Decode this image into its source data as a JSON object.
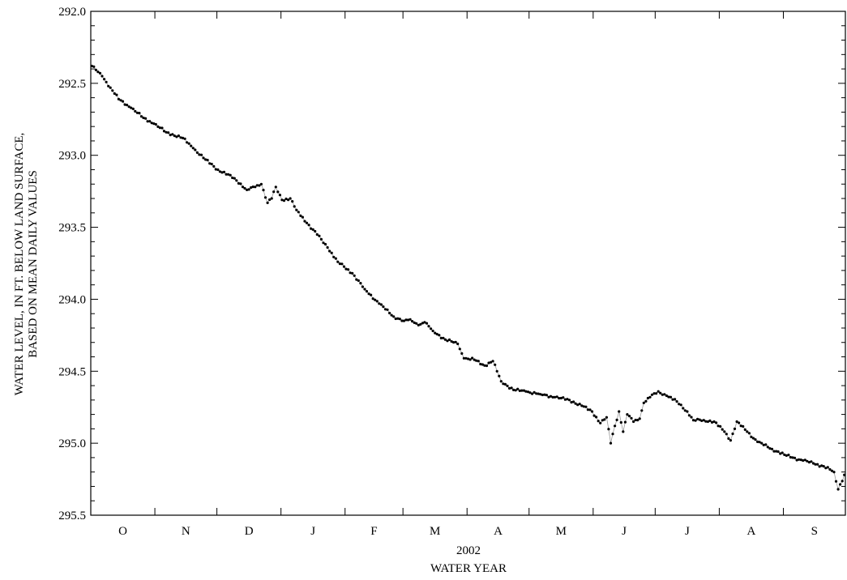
{
  "chart_data": {
    "type": "line",
    "title": "",
    "ylabel_lines": [
      "WATER LEVEL, IN FT. BELOW LAND SURFACE,",
      "BASED ON MEAN DAILY VALUES"
    ],
    "xlabel_year": "2002",
    "xlabel": "WATER YEAR",
    "ylim": [
      292.0,
      295.5
    ],
    "y_inverted": true,
    "y_ticks": [
      "292.0",
      "292.5",
      "293.0",
      "293.5",
      "294.0",
      "294.5",
      "295.0",
      "295.5"
    ],
    "y_minor_step": 0.1,
    "months": [
      "O",
      "N",
      "D",
      "J",
      "F",
      "M",
      "A",
      "M",
      "J",
      "J",
      "A",
      "S"
    ],
    "month_lengths": [
      31,
      30,
      31,
      31,
      28,
      31,
      30,
      31,
      30,
      31,
      31,
      30
    ],
    "x_unit": "day of water year (1 = Oct 1, 2001)",
    "x_range": [
      1,
      365
    ],
    "grid": false,
    "series": [
      {
        "style": "dots with thin connecting line",
        "keypoints": [
          [
            1,
            292.38
          ],
          [
            6,
            292.45
          ],
          [
            10,
            292.53
          ],
          [
            14,
            292.61
          ],
          [
            20,
            292.67
          ],
          [
            26,
            292.74
          ],
          [
            31,
            292.78
          ],
          [
            37,
            292.84
          ],
          [
            45,
            292.88
          ],
          [
            50,
            292.95
          ],
          [
            56,
            293.03
          ],
          [
            62,
            293.1
          ],
          [
            70,
            293.16
          ],
          [
            76,
            293.24
          ],
          [
            80,
            293.22
          ],
          [
            83,
            293.2
          ],
          [
            86,
            293.33
          ],
          [
            88,
            293.3
          ],
          [
            90,
            293.22
          ],
          [
            93,
            293.31
          ],
          [
            97,
            293.3
          ],
          [
            100,
            293.38
          ],
          [
            105,
            293.47
          ],
          [
            110,
            293.55
          ],
          [
            115,
            293.64
          ],
          [
            120,
            293.74
          ],
          [
            127,
            293.82
          ],
          [
            133,
            293.93
          ],
          [
            140,
            294.03
          ],
          [
            147,
            294.12
          ],
          [
            152,
            294.15
          ],
          [
            155,
            294.14
          ],
          [
            159,
            294.18
          ],
          [
            162,
            294.16
          ],
          [
            166,
            294.22
          ],
          [
            172,
            294.28
          ],
          [
            178,
            294.31
          ],
          [
            181,
            294.41
          ],
          [
            186,
            294.42
          ],
          [
            191,
            294.46
          ],
          [
            195,
            294.43
          ],
          [
            199,
            294.57
          ],
          [
            205,
            294.63
          ],
          [
            211,
            294.64
          ],
          [
            218,
            294.66
          ],
          [
            225,
            294.68
          ],
          [
            232,
            294.7
          ],
          [
            238,
            294.74
          ],
          [
            243,
            294.78
          ],
          [
            247,
            294.86
          ],
          [
            250,
            294.82
          ],
          [
            252,
            295.0
          ],
          [
            254,
            294.88
          ],
          [
            256,
            294.78
          ],
          [
            258,
            294.92
          ],
          [
            260,
            294.8
          ],
          [
            263,
            294.85
          ],
          [
            266,
            294.83
          ],
          [
            268,
            294.72
          ],
          [
            271,
            294.68
          ],
          [
            275,
            294.64
          ],
          [
            279,
            294.67
          ],
          [
            284,
            294.71
          ],
          [
            289,
            294.78
          ],
          [
            292,
            294.84
          ],
          [
            297,
            294.84
          ],
          [
            302,
            294.85
          ],
          [
            307,
            294.92
          ],
          [
            310,
            294.98
          ],
          [
            313,
            294.85
          ],
          [
            318,
            294.92
          ],
          [
            323,
            294.99
          ],
          [
            330,
            295.04
          ],
          [
            336,
            295.08
          ],
          [
            340,
            295.1
          ],
          [
            345,
            295.12
          ],
          [
            350,
            295.14
          ],
          [
            355,
            295.16
          ],
          [
            360,
            295.2
          ],
          [
            362,
            295.32
          ],
          [
            365,
            295.22
          ]
        ]
      }
    ]
  }
}
